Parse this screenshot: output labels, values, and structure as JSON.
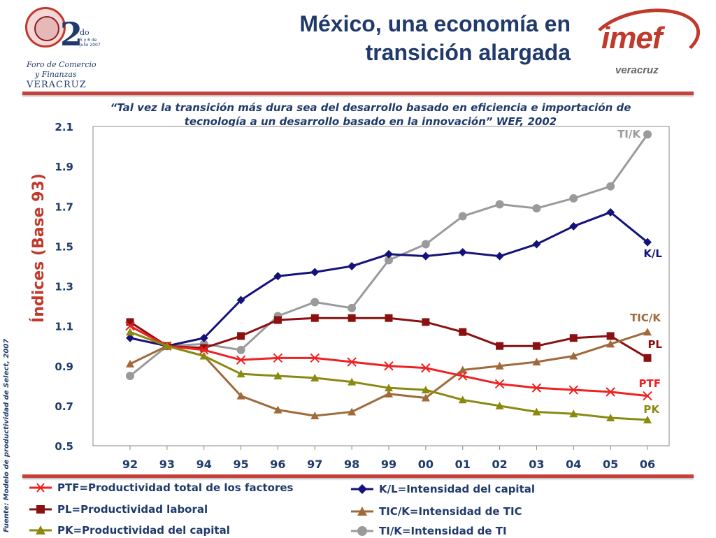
{
  "header": {
    "title_line1": "México, una economía en",
    "title_line2": "transición alargada"
  },
  "logo_left": {
    "big": "2",
    "sup": "do",
    "date": "5 y 6 de julio 2007",
    "line1": "Foro de Comercio",
    "line2": "y Finanzas",
    "line3": "VERACRUZ"
  },
  "logo_right": {
    "brand": "imef",
    "sub": "veracruz"
  },
  "quote": {
    "line1": "“Tal vez la transición más dura sea del desarrollo basado en eficiencia e importación de",
    "line2": "tecnología a un desarrollo basado en la innovación” WEF, 2002"
  },
  "source": "Fuente: Modelo de productividad de Select, 2007",
  "legend": [
    {
      "key": "PTF",
      "label": "PTF=Productividad total de los factores",
      "color": "#ee2222",
      "marker": "x"
    },
    {
      "key": "PL",
      "label": "PL=Productividad laboral",
      "color": "#8b1010",
      "marker": "square"
    },
    {
      "key": "PK",
      "label": "PK=Productividad del capital",
      "color": "#8a8a10",
      "marker": "triangle"
    },
    {
      "key": "K/L",
      "label": "K/L=Intensidad del capital",
      "color": "#12127a",
      "marker": "diamond"
    },
    {
      "key": "TIC/K",
      "label": "TIC/K=Intensidad de TIC",
      "color": "#a0693a",
      "marker": "triangle"
    },
    {
      "key": "TI/K",
      "label": "TI/K=Intensidad de TI",
      "color": "#9a9a9a",
      "marker": "circle"
    }
  ],
  "chart_data": {
    "type": "line",
    "ylabel": "Índices (Base 93)",
    "xlabel": "",
    "categories": [
      "92",
      "93",
      "94",
      "95",
      "96",
      "97",
      "98",
      "99",
      "00",
      "01",
      "02",
      "03",
      "04",
      "05",
      "06"
    ],
    "ylim": [
      0.5,
      2.1
    ],
    "yticks": [
      "2.1",
      "1.9",
      "1.7",
      "1.5",
      "1.3",
      "1.1",
      "0.9",
      "0.7",
      "0.5"
    ],
    "ytick_values": [
      2.1,
      1.9,
      1.7,
      1.5,
      1.3,
      1.1,
      0.9,
      0.7,
      0.5
    ],
    "grid": false,
    "series": [
      {
        "name": "TI/K",
        "label": "TI/K",
        "color": "#9a9a9a",
        "marker": "circle",
        "values": [
          0.85,
          1.0,
          1.01,
          0.98,
          1.15,
          1.22,
          1.19,
          1.43,
          1.51,
          1.65,
          1.71,
          1.69,
          1.74,
          1.8,
          2.06
        ]
      },
      {
        "name": "K/L",
        "label": "K/L",
        "color": "#12127a",
        "marker": "diamond",
        "values": [
          1.04,
          1.0,
          1.04,
          1.23,
          1.35,
          1.37,
          1.4,
          1.46,
          1.45,
          1.47,
          1.45,
          1.51,
          1.6,
          1.67,
          1.52
        ]
      },
      {
        "name": "PL",
        "label": "PL",
        "color": "#8b1010",
        "marker": "square",
        "values": [
          1.12,
          1.0,
          0.99,
          1.05,
          1.13,
          1.14,
          1.14,
          1.14,
          1.12,
          1.07,
          1.0,
          1.0,
          1.04,
          1.05,
          0.94
        ]
      },
      {
        "name": "TIC/K",
        "label": "TIC/K",
        "color": "#a0693a",
        "marker": "triangle",
        "values": [
          0.91,
          1.0,
          0.95,
          0.75,
          0.68,
          0.65,
          0.67,
          0.76,
          0.74,
          0.88,
          0.9,
          0.92,
          0.95,
          1.01,
          1.07
        ]
      },
      {
        "name": "PTF",
        "label": "PTF",
        "color": "#ee2222",
        "marker": "x",
        "values": [
          1.1,
          1.0,
          0.98,
          0.93,
          0.94,
          0.94,
          0.92,
          0.9,
          0.89,
          0.85,
          0.81,
          0.79,
          0.78,
          0.77,
          0.75
        ]
      },
      {
        "name": "PK",
        "label": "PK",
        "color": "#8a8a10",
        "marker": "triangle",
        "values": [
          1.07,
          1.0,
          0.95,
          0.86,
          0.85,
          0.84,
          0.82,
          0.79,
          0.78,
          0.73,
          0.7,
          0.67,
          0.66,
          0.64,
          0.63
        ]
      }
    ]
  }
}
